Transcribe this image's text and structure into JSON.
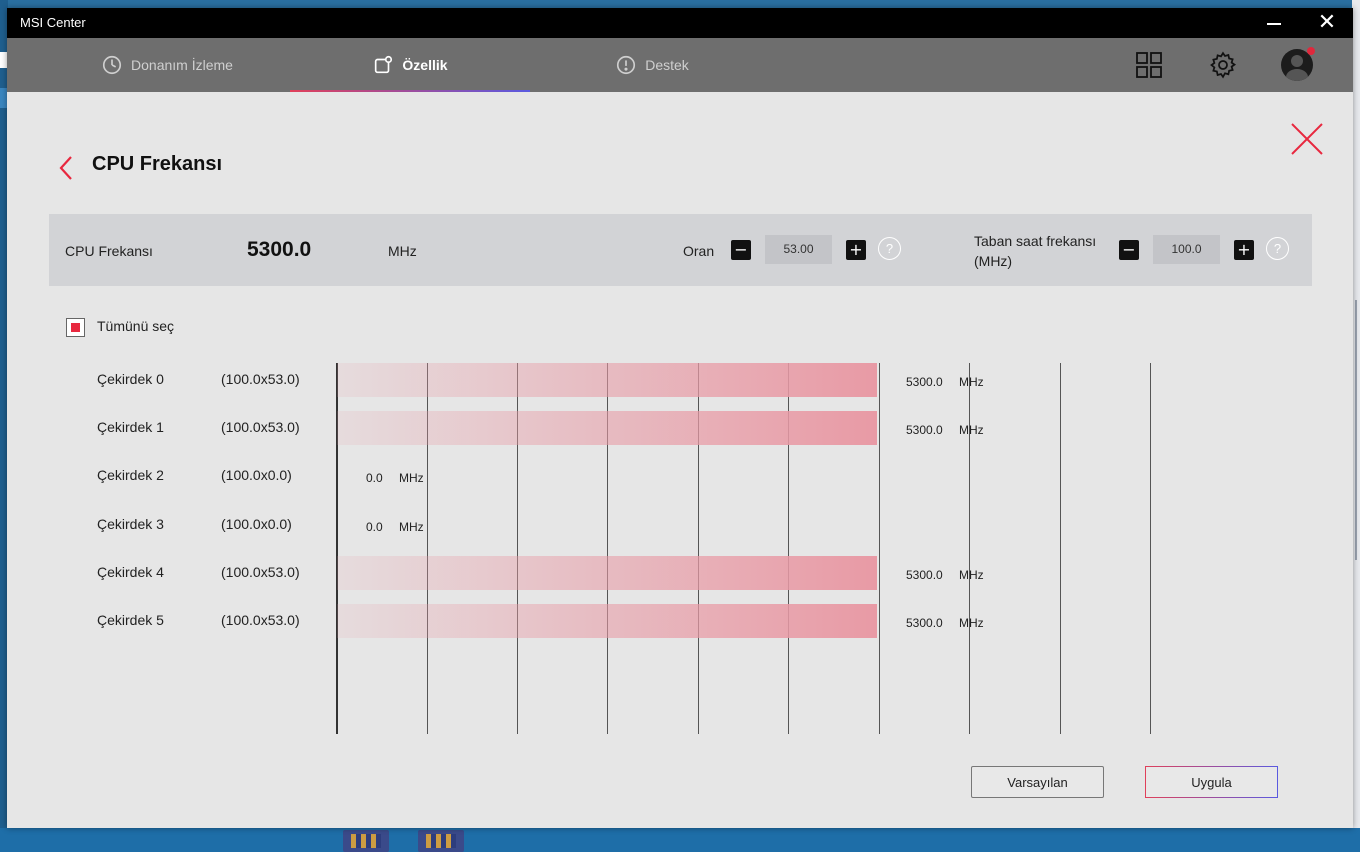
{
  "window": {
    "title": "MSI Center"
  },
  "nav": {
    "tabs": [
      {
        "label": "Donanım İzleme",
        "icon": "gauge-icon"
      },
      {
        "label": "Özellik",
        "icon": "feature-icon",
        "active": true
      },
      {
        "label": "Destek",
        "icon": "alert-circle-icon"
      }
    ]
  },
  "page": {
    "title": "CPU Frekansı"
  },
  "summary": {
    "label": "CPU Frekansı",
    "value": "5300.0",
    "unit": "MHz",
    "ratio_label": "Oran",
    "ratio_value": "53.00",
    "base_label_line1": "Taban saat frekansı",
    "base_label_line2": "(MHz)",
    "base_value": "100.0",
    "help_glyph": "?"
  },
  "select_all": {
    "label": "Tümünü seç",
    "checked": true
  },
  "cores": [
    {
      "name": "Çekirdek 0",
      "ratio": "(100.0x53.0)",
      "freq": "5300.0",
      "unit": "MHz",
      "mhz": 5300
    },
    {
      "name": "Çekirdek 1",
      "ratio": "(100.0x53.0)",
      "freq": "5300.0",
      "unit": "MHz",
      "mhz": 5300
    },
    {
      "name": "Çekirdek 2",
      "ratio": "(100.0x0.0)",
      "freq": "0.0",
      "unit": "MHz",
      "mhz": 0
    },
    {
      "name": "Çekirdek 3",
      "ratio": "(100.0x0.0)",
      "freq": "0.0",
      "unit": "MHz",
      "mhz": 0
    },
    {
      "name": "Çekirdek 4",
      "ratio": "(100.0x53.0)",
      "freq": "5300.0",
      "unit": "MHz",
      "mhz": 5300
    },
    {
      "name": "Çekirdek 5",
      "ratio": "(100.0x53.0)",
      "freq": "5300.0",
      "unit": "MHz",
      "mhz": 5300
    }
  ],
  "buttons": {
    "default_label": "Varsayılan",
    "apply_label": "Uygula"
  },
  "colors": {
    "accent": "#e8283f",
    "bar": "#e89aa5",
    "title_bar": "#000000",
    "nav_bar": "#6e6e6e"
  }
}
